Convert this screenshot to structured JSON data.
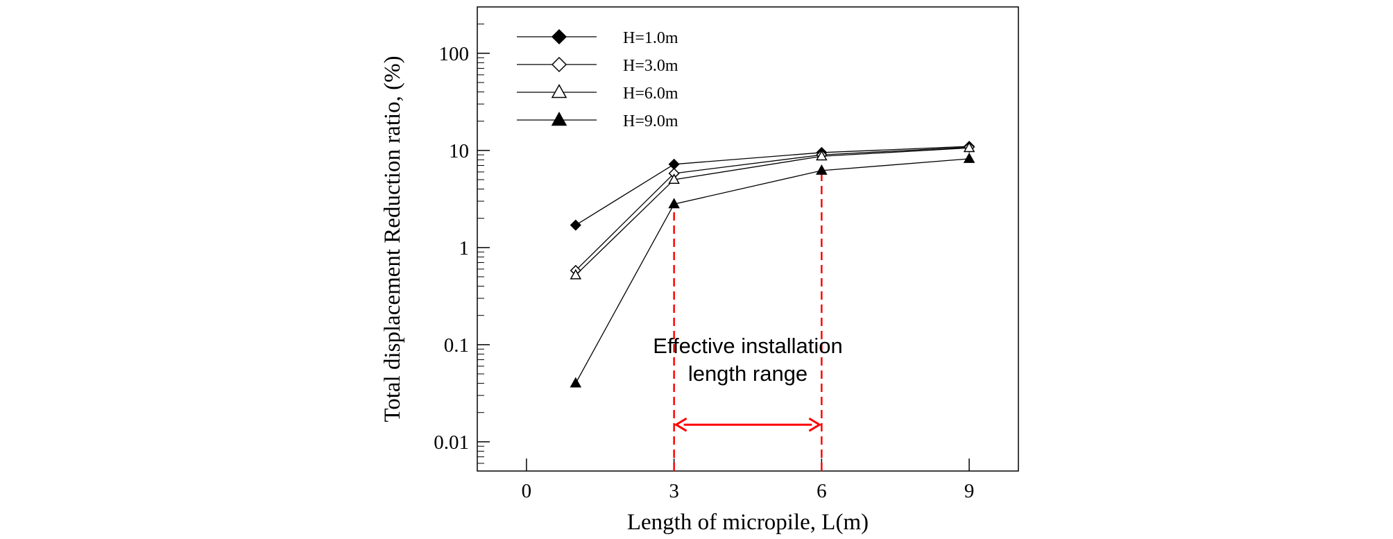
{
  "chart_data": {
    "type": "line",
    "xlabel": "Length of micropile, L(m)",
    "ylabel": "Total displacement Reduction ratio, (%)",
    "xlim": [
      -1.0,
      10.0
    ],
    "ylim": [
      0.005,
      300
    ],
    "yscale": "log",
    "xticks": [
      0,
      3,
      6,
      9
    ],
    "xtick_labels": [
      "0",
      "3",
      "6",
      "9"
    ],
    "yticks": [
      0.01,
      0.1,
      1,
      10,
      100
    ],
    "ytick_labels": [
      "0.01",
      "0.1",
      "1",
      "10",
      "100"
    ],
    "grid": false,
    "legend_position": "top-left",
    "series": [
      {
        "name": "H=1.0m",
        "marker": "filled-diamond",
        "x": [
          1,
          3,
          6,
          9
        ],
        "y": [
          1.7,
          7.2,
          9.5,
          11.0
        ]
      },
      {
        "name": "H=3.0m",
        "marker": "open-diamond",
        "x": [
          1,
          3,
          6,
          9
        ],
        "y": [
          0.58,
          5.8,
          9.0,
          10.8
        ]
      },
      {
        "name": "H=6.0m",
        "marker": "open-triangle",
        "x": [
          1,
          3,
          6,
          9
        ],
        "y": [
          0.52,
          5.0,
          8.7,
          10.6
        ]
      },
      {
        "name": "H=9.0m",
        "marker": "filled-triangle",
        "x": [
          1,
          3,
          6,
          9
        ],
        "y": [
          0.04,
          2.8,
          6.2,
          8.2
        ]
      }
    ],
    "annotations": {
      "text_line1": "Effective installation",
      "text_line2": "length range",
      "range_start": 3,
      "range_end": 6,
      "color": "#ff0000"
    },
    "colors": {
      "series": "#000000",
      "annotation": "#ff0000"
    }
  }
}
